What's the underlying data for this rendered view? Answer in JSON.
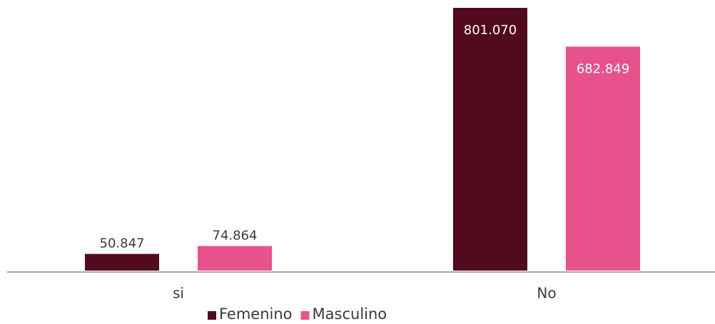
{
  "chart_data": {
    "type": "bar",
    "categories": [
      "si",
      "No"
    ],
    "series": [
      {
        "name": "Femenino",
        "color": "#520a1e",
        "values": [
          50847,
          801070
        ],
        "value_labels": [
          "50.847",
          "801.070"
        ]
      },
      {
        "name": "Masculino",
        "color": "#e8528c",
        "values": [
          74864,
          682849
        ],
        "value_labels": [
          "74.864",
          "682.849"
        ]
      }
    ]
  }
}
